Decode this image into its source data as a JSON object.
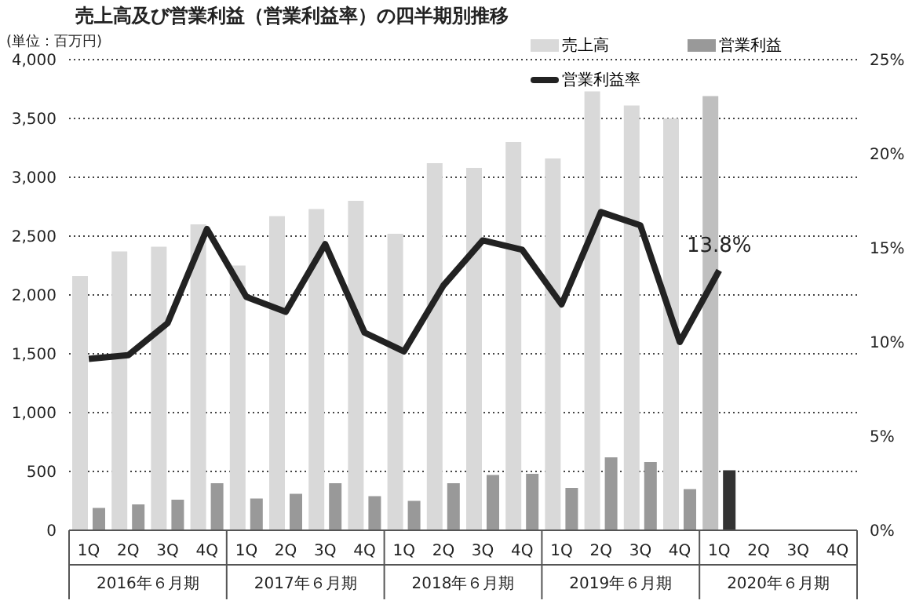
{
  "chart_data": {
    "type": "bar",
    "title": "売上高及び営業利益（営業利益率）の四半期別推移",
    "categories": [
      "1Q",
      "2Q",
      "3Q",
      "4Q",
      "1Q",
      "2Q",
      "3Q",
      "4Q",
      "1Q",
      "2Q",
      "3Q",
      "4Q",
      "1Q",
      "2Q",
      "3Q",
      "4Q",
      "1Q",
      "2Q",
      "3Q",
      "4Q"
    ],
    "series": [
      {
        "name": "売上高",
        "color": "#d9d9d9",
        "colors": [
          "#d9d9d9",
          "#d9d9d9",
          "#d9d9d9",
          "#d9d9d9",
          "#d9d9d9",
          "#d9d9d9",
          "#d9d9d9",
          "#d9d9d9",
          "#d9d9d9",
          "#d9d9d9",
          "#d9d9d9",
          "#d9d9d9",
          "#d9d9d9",
          "#d9d9d9",
          "#d9d9d9",
          "#d9d9d9",
          "#bfbfbf",
          null,
          null,
          null
        ],
        "values": [
          2160,
          2370,
          2410,
          2600,
          2250,
          2670,
          2730,
          2800,
          2520,
          3120,
          3080,
          3300,
          3160,
          3730,
          3610,
          3500,
          3690,
          null,
          null,
          null
        ]
      },
      {
        "name": "営業利益",
        "color": "#999999",
        "colors": [
          "#999999",
          "#999999",
          "#999999",
          "#999999",
          "#999999",
          "#999999",
          "#999999",
          "#999999",
          "#999999",
          "#999999",
          "#999999",
          "#999999",
          "#999999",
          "#999999",
          "#999999",
          "#999999",
          "#333333",
          null,
          null,
          null
        ],
        "values": [
          190,
          220,
          260,
          400,
          270,
          310,
          400,
          290,
          250,
          400,
          470,
          480,
          360,
          620,
          580,
          350,
          510,
          null,
          null,
          null
        ]
      },
      {
        "name": "営業利益率",
        "type": "line",
        "axis": "y2",
        "color": "#222222",
        "values": [
          9.1,
          9.3,
          11.0,
          16.0,
          12.4,
          11.6,
          15.2,
          10.5,
          9.5,
          13.0,
          15.4,
          14.9,
          12.0,
          16.9,
          16.2,
          10.0,
          13.8,
          null,
          null,
          null
        ],
        "value_labels": [
          null,
          null,
          null,
          null,
          null,
          null,
          null,
          null,
          null,
          null,
          null,
          null,
          null,
          null,
          null,
          null,
          "13.8%",
          null,
          null,
          null
        ]
      }
    ],
    "ylim": [
      0,
      4000
    ],
    "yticks": [
      {
        "value": 0,
        "label": "0"
      },
      {
        "value": 500,
        "label": "500"
      },
      {
        "value": 1000,
        "label": "1,000"
      },
      {
        "value": 1500,
        "label": "1,500"
      },
      {
        "value": 2000,
        "label": "2,000"
      },
      {
        "value": 2500,
        "label": "2,500"
      },
      {
        "value": 3000,
        "label": "3,000"
      },
      {
        "value": 3500,
        "label": "3,500"
      },
      {
        "value": 4000,
        "label": "4,000"
      }
    ],
    "y2lim": [
      0,
      25
    ],
    "y2ticks": [
      {
        "value": 0,
        "label": "0%"
      },
      {
        "value": 5,
        "label": "5%"
      },
      {
        "value": 10,
        "label": "10%"
      },
      {
        "value": 15,
        "label": "15%"
      },
      {
        "value": 20,
        "label": "20%"
      },
      {
        "value": 25,
        "label": "25%"
      }
    ],
    "grid": "y",
    "legend": "top right",
    "marker": "none",
    "line_style": "solid",
    "annotations": [
      "(単位：百万円)",
      "2016年６月期",
      "2017年６月期",
      "2018年６月期",
      "2019年６月期",
      "2020年６月期"
    ]
  }
}
